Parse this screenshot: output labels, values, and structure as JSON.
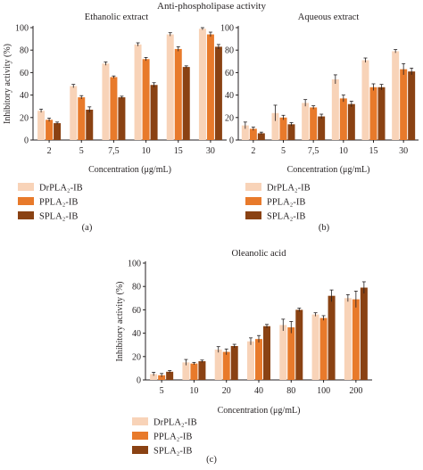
{
  "figure": {
    "suptitle": "Anti-phospholipase activity",
    "colors": {
      "DrPLA2-IB": "#f8d3b8",
      "PPLA2-IB": "#e87a2b",
      "SPLA2-IB": "#8a4213"
    }
  },
  "chart_data": [
    {
      "panel": "(a)",
      "type": "bar",
      "title": "Ethanolic extract",
      "xlabel": "Concentration (μg/mL)",
      "ylabel": "Inhibitory activity (%)",
      "ylim": [
        0,
        100
      ],
      "yticks": [
        0,
        20,
        40,
        60,
        80,
        100
      ],
      "categories": [
        "2",
        "5",
        "7,5",
        "10",
        "15",
        "30"
      ],
      "series": [
        {
          "name": "DrPLA₂-IB",
          "values": [
            26,
            48,
            68,
            85,
            94,
            99
          ],
          "errors": [
            1.5,
            1.5,
            1.5,
            1.5,
            1.5,
            1
          ]
        },
        {
          "name": "PPLA₂-IB",
          "values": [
            18,
            38,
            56,
            72,
            81,
            94
          ],
          "errors": [
            1.5,
            1.5,
            1,
            1.5,
            2,
            2
          ]
        },
        {
          "name": "SPLA₂-IB",
          "values": [
            15,
            27,
            38,
            49,
            65,
            83
          ],
          "errors": [
            1,
            2.5,
            1,
            2,
            1,
            2
          ]
        }
      ],
      "legend": "bottom"
    },
    {
      "panel": "(b)",
      "type": "bar",
      "title": "Aqueous extract",
      "xlabel": "Concentration (μg/mL)",
      "ylabel": "",
      "ylim": [
        0,
        100
      ],
      "yticks": [
        0,
        20,
        40,
        60,
        80,
        100
      ],
      "categories": [
        "2",
        "5",
        "7,5",
        "10",
        "15",
        "30"
      ],
      "series": [
        {
          "name": "DrPLA₂-IB",
          "values": [
            13,
            24,
            33,
            54,
            71,
            79
          ],
          "errors": [
            3,
            7,
            3,
            4,
            2,
            1.5
          ]
        },
        {
          "name": "PPLA₂-IB",
          "values": [
            10,
            20,
            29,
            37,
            47,
            63
          ],
          "errors": [
            1.5,
            2,
            1.5,
            3,
            3,
            5
          ]
        },
        {
          "name": "SPLA₂-IB",
          "values": [
            6,
            14,
            21,
            32,
            47,
            61
          ],
          "errors": [
            1,
            1.5,
            2,
            2.5,
            2.5,
            3
          ]
        }
      ],
      "legend": "bottom"
    },
    {
      "panel": "(c)",
      "type": "bar",
      "title": "Oleanolic acid",
      "xlabel": "Concentration (μg/mL)",
      "ylabel": "Inhibitory activity (%)",
      "ylim": [
        0,
        100
      ],
      "yticks": [
        0,
        20,
        40,
        60,
        80,
        100
      ],
      "categories": [
        "5",
        "10",
        "20",
        "40",
        "80",
        "100",
        "200"
      ],
      "series": [
        {
          "name": "DrPLA₂-IB",
          "values": [
            5,
            15,
            26,
            33,
            47,
            56,
            70
          ],
          "errors": [
            1.5,
            2.5,
            2.5,
            3,
            5,
            1.5,
            3
          ]
        },
        {
          "name": "PPLA₂-IB",
          "values": [
            4,
            14,
            24,
            35,
            45,
            53,
            69
          ],
          "errors": [
            1.5,
            1,
            2.5,
            3,
            5,
            2,
            7
          ]
        },
        {
          "name": "SPLA₂-IB",
          "values": [
            7,
            16,
            29,
            46,
            60,
            72,
            79
          ],
          "errors": [
            1,
            1,
            1.5,
            1.5,
            1.5,
            5,
            5
          ]
        }
      ],
      "legend": "bottom"
    }
  ]
}
